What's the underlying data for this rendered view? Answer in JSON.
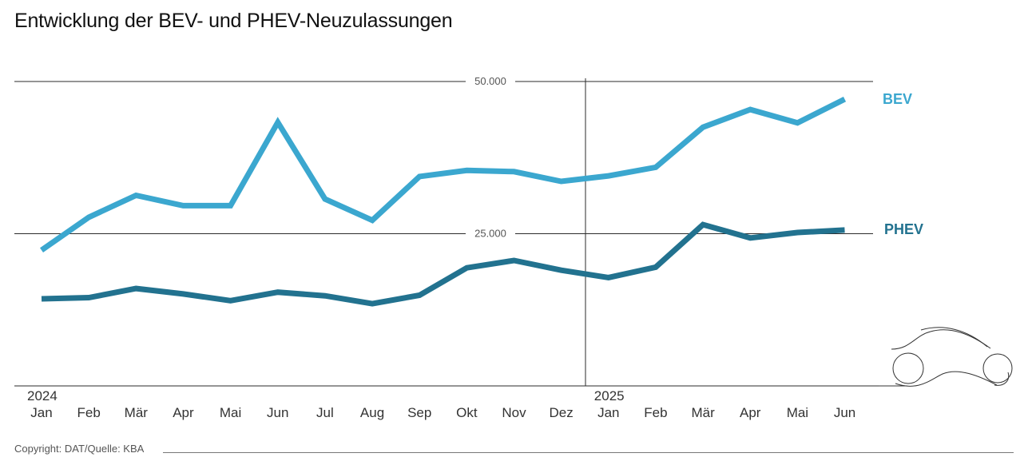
{
  "title": "Entwicklung der BEV- und PHEV-Neuzulassungen",
  "footer": {
    "copyright": "Copyright: DAT/Quelle: KBA"
  },
  "colors": {
    "bev": "#3ba7cf",
    "phev": "#22728f",
    "grid": "#2b2b2b"
  },
  "axis": {
    "y_ticks": [
      {
        "value": 25000,
        "label": "25.000"
      },
      {
        "value": 50000,
        "label": "50.000"
      }
    ],
    "years": [
      {
        "label": "2024",
        "index": 0
      },
      {
        "label": "2025",
        "index": 12
      }
    ]
  },
  "legend": {
    "bev": "BEV",
    "phev": "PHEV"
  },
  "chart_data": {
    "type": "line",
    "title": "Entwicklung der BEV- und PHEV-Neuzulassungen",
    "xlabel": "",
    "ylabel": "",
    "ylim": [
      0,
      50000
    ],
    "grid": true,
    "legend_position": "right (inline labels)",
    "categories": [
      "Jan 2024",
      "Feb 2024",
      "Mär 2024",
      "Apr 2024",
      "Mai 2024",
      "Jun 2024",
      "Jul 2024",
      "Aug 2024",
      "Sep 2024",
      "Okt 2024",
      "Nov 2024",
      "Dez 2024",
      "Jan 2025",
      "Feb 2025",
      "Mär 2025",
      "Apr 2025",
      "Mai 2025",
      "Jun 2025"
    ],
    "x_tick_labels": [
      "Jan",
      "Feb",
      "Mär",
      "Apr",
      "Mai",
      "Jun",
      "Jul",
      "Aug",
      "Sep",
      "Okt",
      "Nov",
      "Dez",
      "Jan",
      "Feb",
      "Mär",
      "Apr",
      "Mai",
      "Jun"
    ],
    "series": [
      {
        "name": "BEV",
        "color": "#3ba7cf",
        "values": [
          22300,
          27700,
          31300,
          29600,
          29600,
          43300,
          30700,
          27200,
          34400,
          35400,
          35200,
          33600,
          34500,
          35900,
          42500,
          45400,
          43200,
          47100
        ]
      },
      {
        "name": "PHEV",
        "color": "#22728f",
        "values": [
          14300,
          14500,
          16000,
          15100,
          14000,
          15400,
          14800,
          13500,
          14900,
          19400,
          20600,
          19000,
          17800,
          19500,
          26500,
          24300,
          25200,
          25600
        ]
      }
    ],
    "annotations": [
      "2024",
      "2025"
    ],
    "source": "Copyright: DAT/Quelle: KBA"
  }
}
